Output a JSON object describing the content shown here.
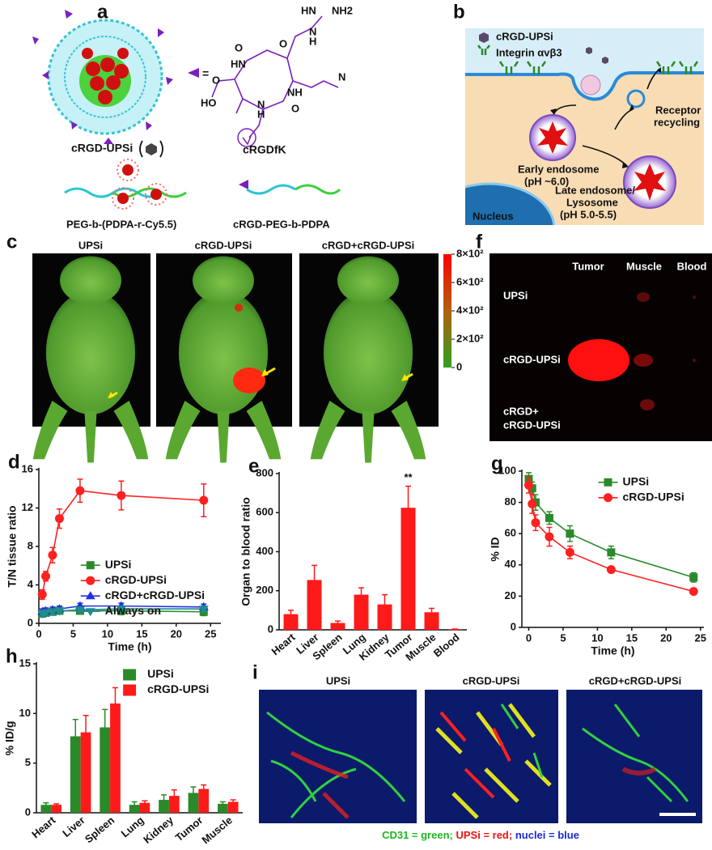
{
  "panel_a": {
    "label": "a",
    "particle": "cRGD-UPSi",
    "equals": "=",
    "peptide": "cRGDfK",
    "polymer_left": "PEG-b-(PDPA-r-Cy5.5)",
    "polymer_right": "cRGD-PEG-b-PDPA",
    "atoms": [
      "NH2",
      "HN",
      "H",
      "N",
      "O",
      "O",
      "HN",
      "NH",
      "HO",
      "O",
      "N",
      "H",
      "O",
      "N"
    ]
  },
  "panel_b": {
    "label": "b",
    "legend_particle": "cRGD-UPSi",
    "legend_integrin": "Integrin αvβ3",
    "recycling": [
      "Receptor",
      "recycling"
    ],
    "early": [
      "Early endosome",
      "(pH ~6.0)"
    ],
    "late": [
      "Late endosome/",
      "Lysosome",
      "(pH 5.0-5.5)"
    ],
    "nucleus": "Nucleus"
  },
  "panel_c": {
    "label": "c",
    "titles": [
      "UPSi",
      "cRGD-UPSi",
      "cRGD+cRGD-UPSi"
    ],
    "colorbar": {
      "lim": [
        0,
        800
      ],
      "ticks": [
        {
          "value": 800,
          "label": "8×10²"
        },
        {
          "value": 600,
          "label": "6×10²"
        },
        {
          "value": 400,
          "label": "4×10²"
        },
        {
          "value": 200,
          "label": "2×10²"
        },
        0
      ]
    }
  },
  "panel_f": {
    "label": "f",
    "columns": [
      "Tumor",
      "Muscle",
      "Blood"
    ],
    "rows": [
      [
        "UPSi"
      ],
      [
        "cRGD-UPSi"
      ],
      [
        "cRGD+",
        "cRGD-UPSi"
      ]
    ]
  },
  "panel_i": {
    "label": "i",
    "titles": [
      "UPSi",
      "cRGD-UPSi",
      "cRGD+cRGD-UPSi"
    ],
    "caption": [
      "CD31 = green;",
      "UPSi = red;",
      "nuclei = blue"
    ]
  },
  "chart_data": [
    {
      "panel_label": "d",
      "type": "line",
      "x_label": "Time (h)",
      "y_label": "T/N tissue ratio",
      "x": [
        0.5,
        1,
        2,
        3,
        6,
        12,
        24
      ],
      "xlim": [
        0,
        26.5
      ],
      "xticks": [
        0,
        5,
        10,
        15,
        20,
        25
      ],
      "ylim": [
        0,
        16
      ],
      "yticks": [
        0,
        4,
        8,
        12,
        16
      ],
      "legend": "center right",
      "series": [
        {
          "name": "UPSi",
          "color": "#2a8a2a",
          "marker": "square",
          "values": [
            1.0,
            1.1,
            1.2,
            1.3,
            1.3,
            1.3,
            1.2
          ],
          "error": [
            0.3,
            0.3,
            0.3,
            0.3,
            0.3,
            0.4,
            0.4
          ]
        },
        {
          "name": "cRGD-UPSi",
          "color": "#ff2020",
          "marker": "circle",
          "values": [
            3.0,
            4.9,
            7.1,
            10.9,
            13.8,
            13.3,
            12.8
          ],
          "error": [
            0.5,
            0.5,
            0.8,
            1.0,
            1.2,
            1.5,
            1.7
          ]
        },
        {
          "name": "cRGD+cRGD-UPSi",
          "color": "#2030e0",
          "marker": "triangle-up",
          "values": [
            1.2,
            1.3,
            1.4,
            1.5,
            1.8,
            1.8,
            1.7
          ],
          "error": [
            0.3,
            0.3,
            0.3,
            0.3,
            0.3,
            0.3,
            0.3
          ]
        },
        {
          "name": "Always on",
          "color": "#208a90",
          "marker": "triangle-down",
          "values": [
            1.0,
            1.1,
            1.2,
            1.3,
            1.4,
            1.5,
            1.5
          ],
          "error": [
            0.3,
            0.3,
            0.3,
            0.3,
            0.3,
            0.3,
            0.3
          ]
        }
      ]
    },
    {
      "panel_label": "e",
      "type": "bar",
      "y_label": "Organ to blood ratio",
      "categories": [
        "Heart",
        "Liver",
        "Spleen",
        "Lung",
        "Kidney",
        "Tumor",
        "Muscle",
        "Blood"
      ],
      "values": [
        80,
        255,
        35,
        180,
        130,
        625,
        90,
        2
      ],
      "error": [
        20,
        75,
        10,
        35,
        50,
        110,
        20,
        2
      ],
      "color": "#ff1a1a",
      "ylim": [
        0,
        800
      ],
      "yticks": [
        0,
        200,
        400,
        600,
        800
      ],
      "annotations": [
        {
          "text": "**",
          "x": "Tumor"
        }
      ]
    },
    {
      "panel_label": "g",
      "type": "line",
      "x_label": "Time (h)",
      "y_label": "% ID",
      "x": [
        0,
        0.5,
        1,
        3,
        6,
        12,
        24
      ],
      "xlim": [
        -1,
        25.5
      ],
      "xticks": [
        0,
        5,
        10,
        15,
        20,
        25
      ],
      "ylim": [
        0,
        100
      ],
      "yticks": [
        0,
        20,
        40,
        60,
        80,
        100
      ],
      "legend": "upper right",
      "series": [
        {
          "name": "UPSi",
          "color": "#2a8a2a",
          "marker": "square",
          "values": [
            95,
            89,
            80,
            70,
            60,
            48,
            32
          ],
          "error": [
            4,
            4,
            5,
            4,
            5,
            4,
            3
          ]
        },
        {
          "name": "cRGD-UPSi",
          "color": "#ff2020",
          "marker": "circle",
          "values": [
            91,
            79,
            67,
            58,
            48,
            37,
            23
          ],
          "error": [
            5,
            6,
            5,
            6,
            4,
            2,
            1.5
          ]
        }
      ]
    },
    {
      "panel_label": "h",
      "type": "bar",
      "y_label": "% ID/g",
      "categories": [
        "Heart",
        "Liver",
        "Spleen",
        "Lung",
        "Kidney",
        "Tumor",
        "Muscle"
      ],
      "ylim": [
        0,
        15
      ],
      "yticks": [
        0,
        5,
        10,
        15
      ],
      "legend": "upper right",
      "series": [
        {
          "name": "UPSi",
          "color": "#2a8a2a",
          "values": [
            0.8,
            7.7,
            8.6,
            0.8,
            1.3,
            2.0,
            0.9
          ],
          "error": [
            0.2,
            1.7,
            1.8,
            0.3,
            0.5,
            0.6,
            0.2
          ]
        },
        {
          "name": "cRGD-UPSi",
          "color": "#ff1a1a",
          "values": [
            0.8,
            8.1,
            11.0,
            1.0,
            1.7,
            2.4,
            1.1
          ],
          "error": [
            0.1,
            1.7,
            1.6,
            0.2,
            0.6,
            0.4,
            0.2
          ]
        }
      ]
    }
  ]
}
